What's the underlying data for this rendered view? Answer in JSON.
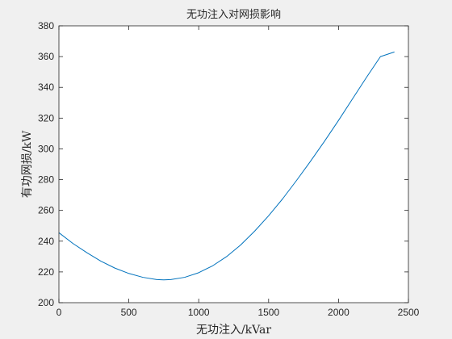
{
  "colors": {
    "background": "#f0f0f0",
    "axes_background": "#ffffff",
    "axis": "#262626",
    "series": "#0072bd"
  },
  "chart_data": {
    "type": "line",
    "title": "无功注入对网损影响",
    "xlabel": "无功注入/kVar",
    "ylabel": "有功网损/kW",
    "xlim": [
      0,
      2500
    ],
    "ylim": [
      200,
      380
    ],
    "xticks": [
      0,
      500,
      1000,
      1500,
      2000,
      2500
    ],
    "yticks": [
      200,
      220,
      240,
      260,
      280,
      300,
      320,
      340,
      360,
      380
    ],
    "grid": false,
    "legend": "none",
    "series": [
      {
        "x": [
          0,
          100,
          200,
          300,
          400,
          500,
          600,
          700,
          750,
          800,
          900,
          1000,
          1100,
          1200,
          1300,
          1400,
          1500,
          1600,
          1700,
          1800,
          1900,
          2000,
          2100,
          2200,
          2300,
          2400
        ],
        "y": [
          245.5,
          238.5,
          232.5,
          227.0,
          222.5,
          219.0,
          216.5,
          215.0,
          214.8,
          215.0,
          216.5,
          219.5,
          224.0,
          230.0,
          237.5,
          246.5,
          256.5,
          267.5,
          279.5,
          292.0,
          305.0,
          318.5,
          332.5,
          346.5,
          360.0,
          363.0
        ]
      }
    ]
  }
}
